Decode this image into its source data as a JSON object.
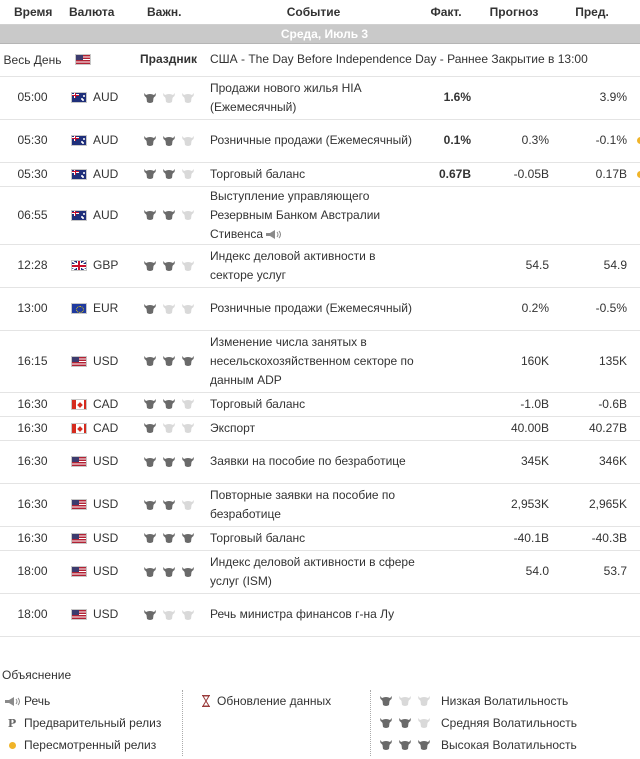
{
  "headers": {
    "time": "Время",
    "currency": "Валюта",
    "importance": "Важн.",
    "event": "Событие",
    "actual": "Факт.",
    "forecast": "Прогноз",
    "previous": "Пред."
  },
  "day_label": "Среда, Июль 3",
  "holiday": {
    "time": "Весь День",
    "label": "Праздник",
    "event": "США - The Day Before Independence Day - Раннее Закрытие в 13:00",
    "flag": "us"
  },
  "events": [
    {
      "time": "05:00",
      "flag": "au",
      "currency": "AUD",
      "bulls": 1,
      "event": "Продажи нового жилья HIA (Ежемесячный)",
      "actual": "1.6%",
      "actual_style": "neutral",
      "forecast": "",
      "previous": "3.9%",
      "previous_style": "",
      "revised": false,
      "speech": false
    },
    {
      "time": "05:30",
      "flag": "au",
      "currency": "AUD",
      "bulls": 2,
      "event": "Розничные продажи (Ежемесячный)",
      "actual": "0.1%",
      "actual_style": "negative",
      "forecast": "0.3%",
      "previous": "-0.1%",
      "previous_style": "negative",
      "revised": true,
      "speech": false
    },
    {
      "time": "05:30",
      "flag": "au",
      "currency": "AUD",
      "bulls": 2,
      "event": "Торговый баланс",
      "actual": "0.67B",
      "actual_style": "positive",
      "forecast": "-0.05B",
      "previous": "0.17B",
      "previous_style": "positive",
      "revised": true,
      "speech": false
    },
    {
      "time": "06:55",
      "flag": "au",
      "currency": "AUD",
      "bulls": 2,
      "event": "Выступление управляющего Резервным Банком Австралии Стивенса",
      "actual": "",
      "actual_style": "",
      "forecast": "",
      "previous": "",
      "previous_style": "",
      "revised": false,
      "speech": true
    },
    {
      "time": "12:28",
      "flag": "gb",
      "currency": "GBP",
      "bulls": 2,
      "event": "Индекс деловой активности в секторе услуг",
      "actual": "",
      "actual_style": "",
      "forecast": "54.5",
      "previous": "54.9",
      "previous_style": "",
      "revised": false,
      "speech": false
    },
    {
      "time": "13:00",
      "flag": "eu",
      "currency": "EUR",
      "bulls": 1,
      "event": "Розничные продажи (Ежемесячный)",
      "actual": "",
      "actual_style": "",
      "forecast": "0.2%",
      "previous": "-0.5%",
      "previous_style": "",
      "revised": false,
      "speech": false
    },
    {
      "time": "16:15",
      "flag": "us",
      "currency": "USD",
      "bulls": 3,
      "event": "Изменение числа занятых в несельскохозяйственном секторе по данным ADP",
      "actual": "",
      "actual_style": "",
      "forecast": "160K",
      "previous": "135K",
      "previous_style": "",
      "revised": false,
      "speech": false
    },
    {
      "time": "16:30",
      "flag": "ca",
      "currency": "CAD",
      "bulls": 2,
      "event": "Торговый баланс",
      "actual": "",
      "actual_style": "",
      "forecast": "-1.0B",
      "previous": "-0.6B",
      "previous_style": "",
      "revised": false,
      "speech": false
    },
    {
      "time": "16:30",
      "flag": "ca",
      "currency": "CAD",
      "bulls": 1,
      "event": "Экспорт",
      "actual": "",
      "actual_style": "",
      "forecast": "40.00B",
      "previous": "40.27B",
      "previous_style": "",
      "revised": false,
      "speech": false
    },
    {
      "time": "16:30",
      "flag": "us",
      "currency": "USD",
      "bulls": 3,
      "event": "Заявки на пособие по безработице",
      "actual": "",
      "actual_style": "",
      "forecast": "345K",
      "previous": "346K",
      "previous_style": "",
      "revised": false,
      "speech": false
    },
    {
      "time": "16:30",
      "flag": "us",
      "currency": "USD",
      "bulls": 2,
      "event": "Повторные заявки на пособие по безработице",
      "actual": "",
      "actual_style": "",
      "forecast": "2,953K",
      "previous": "2,965K",
      "previous_style": "",
      "revised": false,
      "speech": false
    },
    {
      "time": "16:30",
      "flag": "us",
      "currency": "USD",
      "bulls": 3,
      "event": "Торговый баланс",
      "actual": "",
      "actual_style": "",
      "forecast": "-40.1B",
      "previous": "-40.3B",
      "previous_style": "",
      "revised": false,
      "speech": false
    },
    {
      "time": "18:00",
      "flag": "us",
      "currency": "USD",
      "bulls": 3,
      "event": "Индекс деловой активности в сфере услуг (ISM)",
      "actual": "",
      "actual_style": "",
      "forecast": "54.0",
      "previous": "53.7",
      "previous_style": "",
      "revised": false,
      "speech": false
    },
    {
      "time": "18:00",
      "flag": "us",
      "currency": "USD",
      "bulls": 1,
      "event": "Речь министра финансов г-на Лу",
      "actual": "",
      "actual_style": "",
      "forecast": "",
      "previous": "",
      "previous_style": "",
      "revised": false,
      "speech": false
    }
  ],
  "row_heights": [],
  "legend": {
    "title": "Объяснение",
    "speech": "Речь",
    "preliminary": "Предварительный релиз",
    "preliminary_glyph": "P",
    "revised": "Пересмотренный релиз",
    "data_update": "Обновление данных",
    "low": "Низкая Волатильность",
    "medium": "Средняя Волатильность",
    "high": "Высокая Волатильность"
  },
  "colors": {
    "positive": "#2e9a1b",
    "negative": "#e3201b",
    "revised_dot": "#f0b429",
    "day_bar": "#c9c9c9"
  }
}
